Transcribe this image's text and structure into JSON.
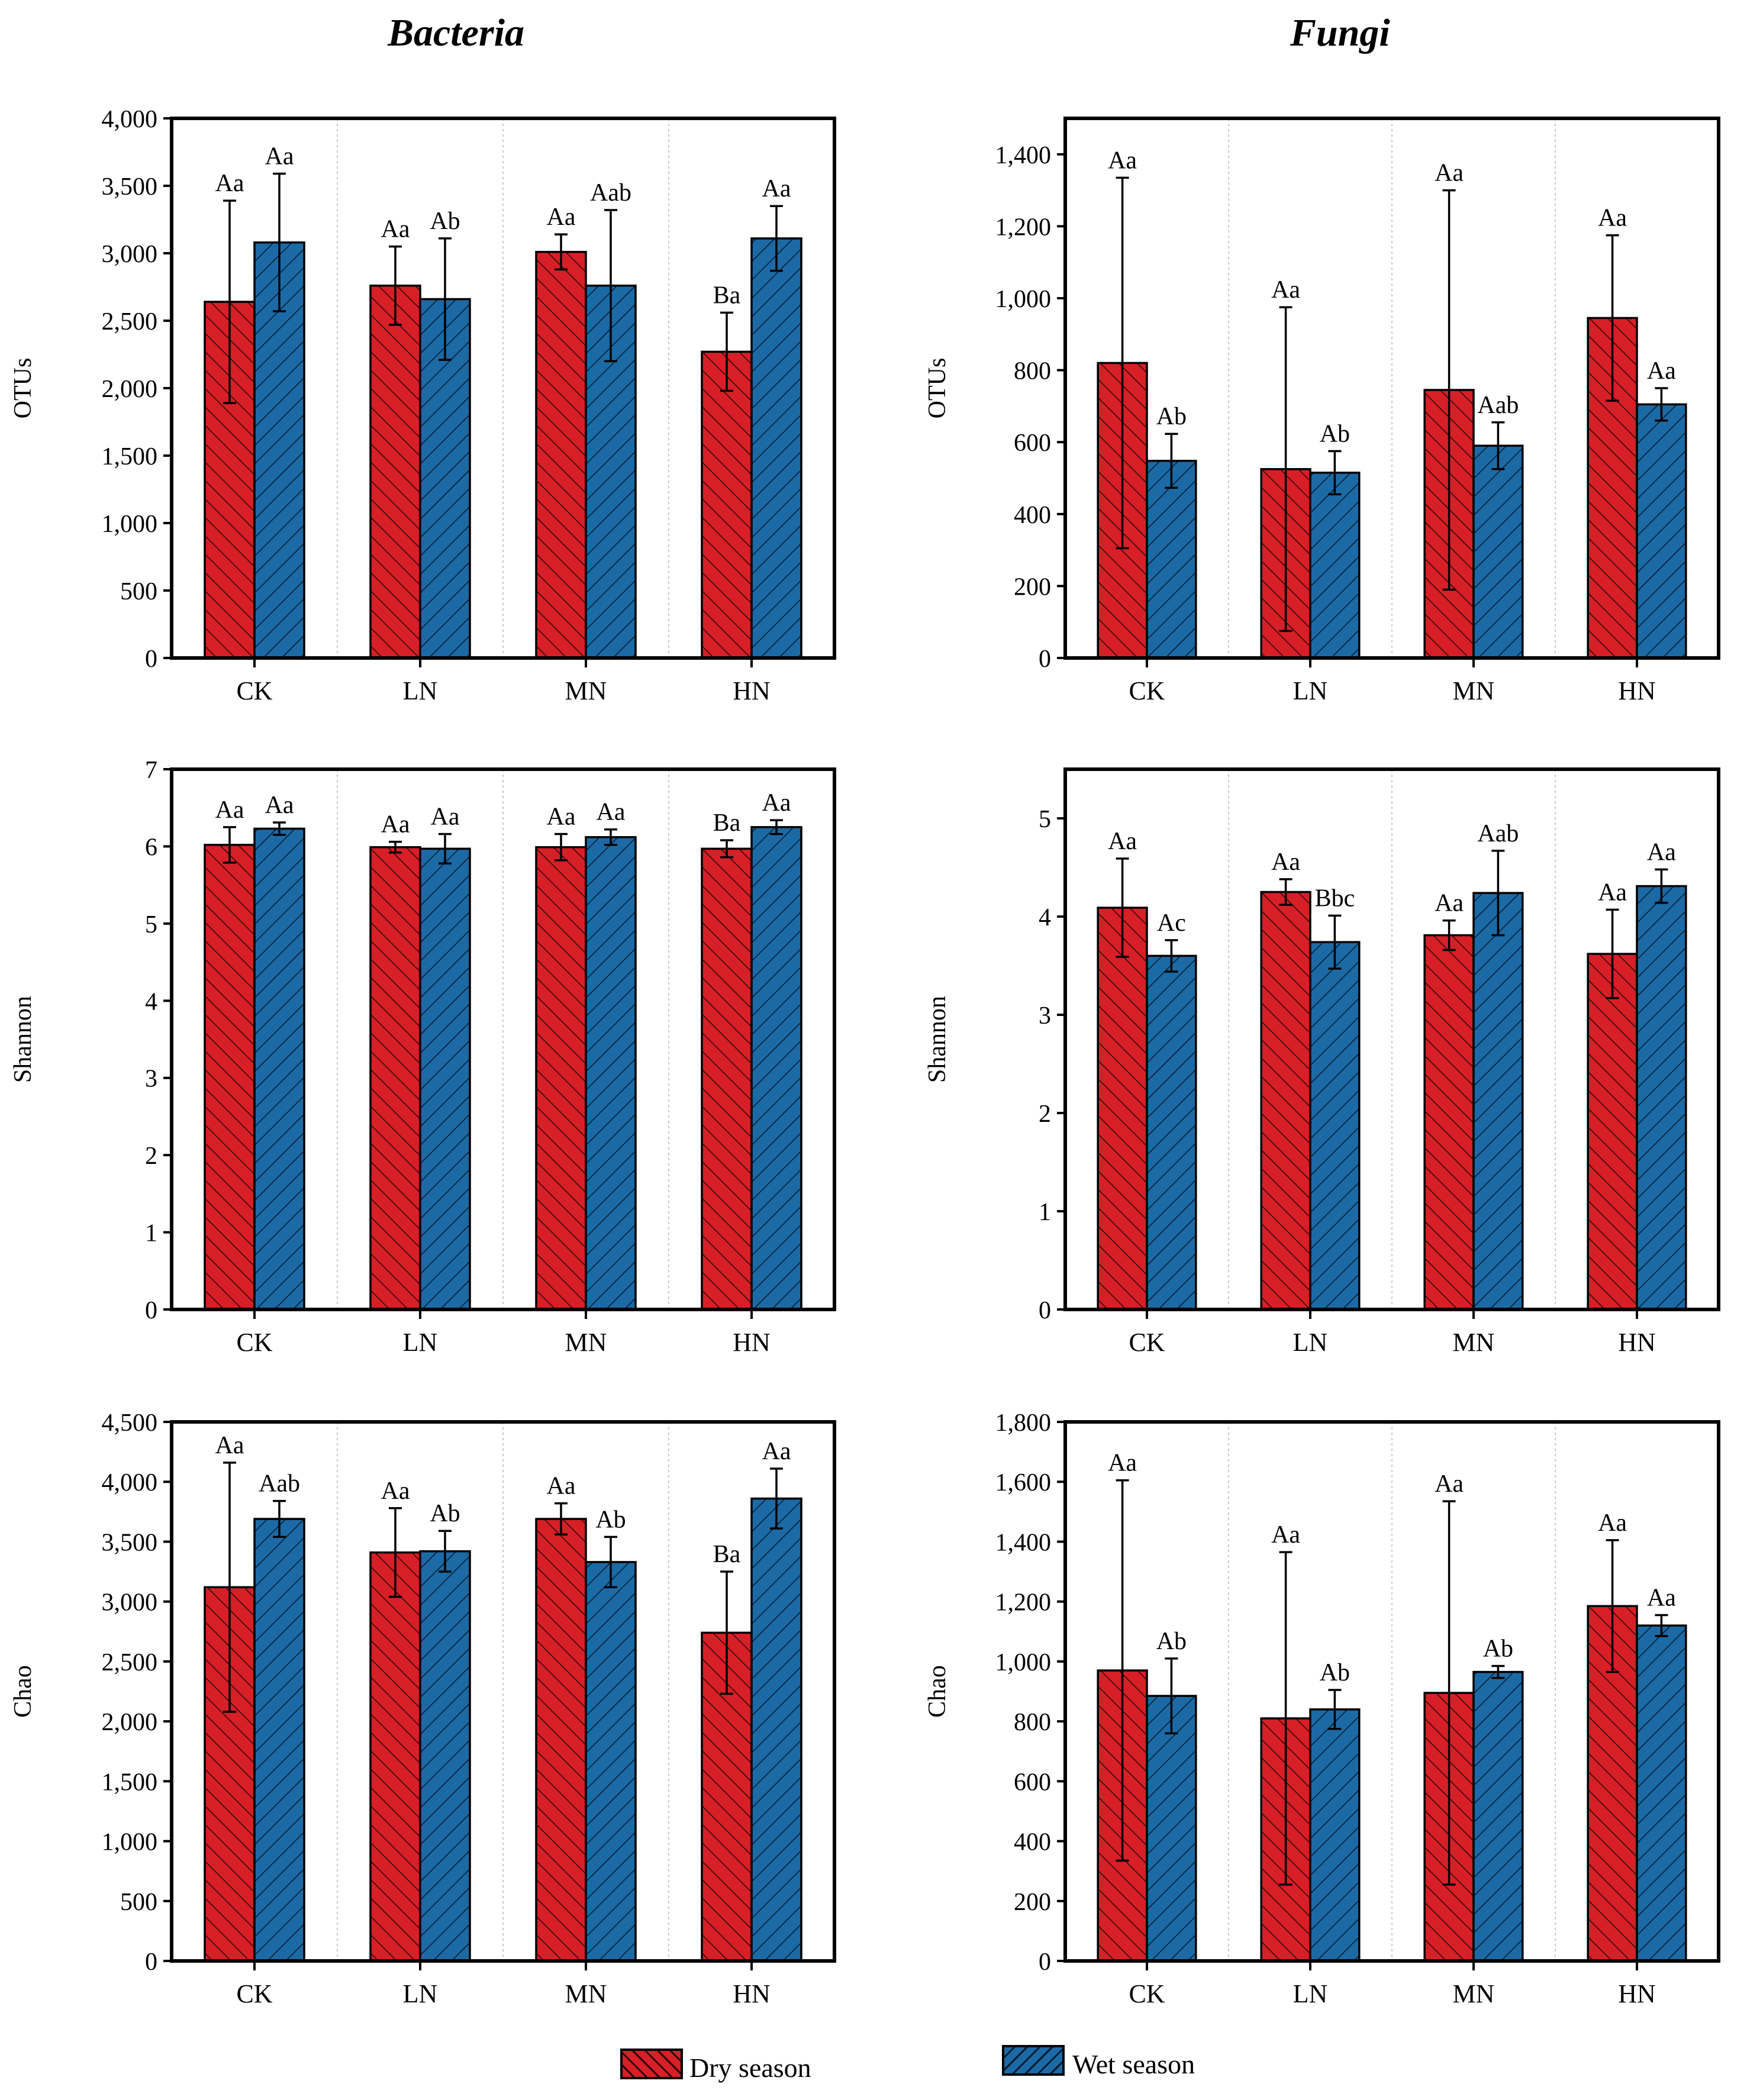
{
  "figure": {
    "column_titles": [
      "Bacteria",
      "Fungi"
    ],
    "legend": [
      {
        "label": "Dry season",
        "color": "#d71f27"
      },
      {
        "label": "Wet season",
        "color": "#1c6aa5"
      }
    ]
  },
  "chart_data": [
    {
      "type": "bar",
      "title": "Bacteria",
      "xlabel": "",
      "ylabel": "OTUs",
      "categories": [
        "CK",
        "LN",
        "MN",
        "HN"
      ],
      "ylim": [
        0,
        4000
      ],
      "yticks": [
        0,
        500,
        1000,
        1500,
        2000,
        2500,
        3000,
        3500,
        4000
      ],
      "ytick_labels": [
        "0",
        "500",
        "1,000",
        "1,500",
        "2,000",
        "2,500",
        "3,000",
        "3,500",
        "4,000"
      ],
      "grid": false,
      "series": [
        {
          "name": "Dry season",
          "values": [
            2640,
            2760,
            3010,
            2270
          ],
          "errors": [
            750,
            290,
            130,
            290
          ],
          "labels": [
            "Aa",
            "Aa",
            "Aa",
            "Ba"
          ]
        },
        {
          "name": "Wet season",
          "values": [
            3080,
            2660,
            2760,
            3110
          ],
          "errors": [
            510,
            450,
            560,
            240
          ],
          "labels": [
            "Aa",
            "Ab",
            "Aab",
            "Aa"
          ]
        }
      ]
    },
    {
      "type": "bar",
      "title": "Fungi",
      "xlabel": "",
      "ylabel": "OTUs",
      "categories": [
        "CK",
        "LN",
        "MN",
        "HN"
      ],
      "ylim": [
        0,
        1500
      ],
      "yticks": [
        0,
        200,
        400,
        600,
        800,
        1000,
        1200,
        1400
      ],
      "ytick_labels": [
        "0",
        "200",
        "400",
        "600",
        "800",
        "1,000",
        "1,200",
        "1,400"
      ],
      "grid": false,
      "series": [
        {
          "name": "Dry season",
          "values": [
            820,
            525,
            745,
            945
          ],
          "errors": [
            515,
            450,
            555,
            230
          ],
          "labels": [
            "Aa",
            "Aa",
            "Aa",
            "Aa"
          ]
        },
        {
          "name": "Wet season",
          "values": [
            548,
            515,
            590,
            705
          ],
          "errors": [
            75,
            60,
            65,
            45
          ],
          "labels": [
            "Ab",
            "Ab",
            "Aab",
            "Aa"
          ]
        }
      ]
    },
    {
      "type": "bar",
      "title": "Bacteria",
      "xlabel": "",
      "ylabel": "Shannon",
      "categories": [
        "CK",
        "LN",
        "MN",
        "HN"
      ],
      "ylim": [
        0,
        7
      ],
      "yticks": [
        0,
        1,
        2,
        3,
        4,
        5,
        6,
        7
      ],
      "ytick_labels": [
        "0",
        "1",
        "2",
        "3",
        "4",
        "5",
        "6",
        "7"
      ],
      "grid": false,
      "series": [
        {
          "name": "Dry season",
          "values": [
            6.02,
            5.99,
            5.99,
            5.97
          ],
          "errors": [
            0.23,
            0.07,
            0.17,
            0.11
          ],
          "labels": [
            "Aa",
            "Aa",
            "Aa",
            "Ba"
          ]
        },
        {
          "name": "Wet season",
          "values": [
            6.23,
            5.97,
            6.12,
            6.25
          ],
          "errors": [
            0.08,
            0.19,
            0.1,
            0.09
          ],
          "labels": [
            "Aa",
            "Aa",
            "Aa",
            "Aa"
          ]
        }
      ]
    },
    {
      "type": "bar",
      "title": "Fungi",
      "xlabel": "",
      "ylabel": "Shannon",
      "categories": [
        "CK",
        "LN",
        "MN",
        "HN"
      ],
      "ylim": [
        0,
        5.5
      ],
      "yticks": [
        0,
        1,
        2,
        3,
        4,
        5
      ],
      "ytick_labels": [
        "0",
        "1",
        "2",
        "3",
        "4",
        "5"
      ],
      "grid": false,
      "series": [
        {
          "name": "Dry season",
          "values": [
            4.09,
            4.25,
            3.81,
            3.62
          ],
          "errors": [
            0.5,
            0.13,
            0.15,
            0.45
          ],
          "labels": [
            "Aa",
            "Aa",
            "Aa",
            "Aa"
          ]
        },
        {
          "name": "Wet season",
          "values": [
            3.6,
            3.74,
            4.24,
            4.31
          ],
          "errors": [
            0.16,
            0.27,
            0.43,
            0.17
          ],
          "labels": [
            "Ac",
            "Bbc",
            "Aab",
            "Aa"
          ]
        }
      ]
    },
    {
      "type": "bar",
      "title": "Bacteria",
      "xlabel": "",
      "ylabel": "Chao",
      "categories": [
        "CK",
        "LN",
        "MN",
        "HN"
      ],
      "ylim": [
        0,
        4500
      ],
      "yticks": [
        0,
        500,
        1000,
        1500,
        2000,
        2500,
        3000,
        3500,
        4000,
        4500
      ],
      "ytick_labels": [
        "0",
        "500",
        "1,000",
        "1,500",
        "2,000",
        "2,500",
        "3,000",
        "3,500",
        "4,000",
        "4,500"
      ],
      "grid": false,
      "series": [
        {
          "name": "Dry season",
          "values": [
            3120,
            3410,
            3690,
            2740
          ],
          "errors": [
            1040,
            370,
            130,
            510
          ],
          "labels": [
            "Aa",
            "Aa",
            "Aa",
            "Ba"
          ]
        },
        {
          "name": "Wet season",
          "values": [
            3690,
            3420,
            3330,
            3860
          ],
          "errors": [
            150,
            170,
            210,
            250
          ],
          "labels": [
            "Aab",
            "Ab",
            "Ab",
            "Aa"
          ]
        }
      ]
    },
    {
      "type": "bar",
      "title": "Fungi",
      "xlabel": "",
      "ylabel": "Chao",
      "categories": [
        "CK",
        "LN",
        "MN",
        "HN"
      ],
      "ylim": [
        0,
        1800
      ],
      "yticks": [
        0,
        200,
        400,
        600,
        800,
        1000,
        1200,
        1400,
        1600,
        1800
      ],
      "ytick_labels": [
        "0",
        "200",
        "400",
        "600",
        "800",
        "1,000",
        "1,200",
        "1,400",
        "1,600",
        "1,800"
      ],
      "grid": false,
      "series": [
        {
          "name": "Dry season",
          "values": [
            970,
            810,
            895,
            1185
          ],
          "errors": [
            635,
            555,
            640,
            220
          ],
          "labels": [
            "Aa",
            "Aa",
            "Aa",
            "Aa"
          ]
        },
        {
          "name": "Wet season",
          "values": [
            885,
            840,
            965,
            1120
          ],
          "errors": [
            125,
            65,
            20,
            35
          ],
          "labels": [
            "Ab",
            "Ab",
            "Ab",
            "Aa"
          ]
        }
      ]
    }
  ]
}
